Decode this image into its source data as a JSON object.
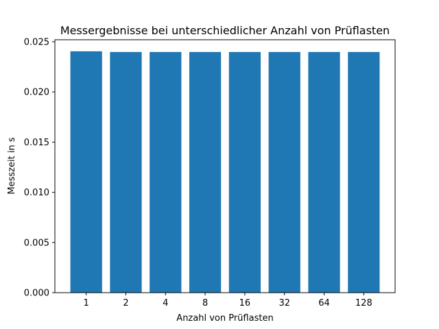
{
  "chart_data": {
    "type": "bar",
    "title": "Messergebnisse bei unterschiedlicher Anzahl von Prüflasten",
    "xlabel": "Anzahl von Prüflasten",
    "ylabel": "Messzeit in s",
    "categories": [
      "1",
      "2",
      "4",
      "8",
      "16",
      "32",
      "64",
      "128"
    ],
    "values": [
      0.02405,
      0.02398,
      0.02398,
      0.02398,
      0.02398,
      0.02398,
      0.02398,
      0.02398
    ],
    "ylim": [
      0,
      0.0252
    ],
    "yticks": [
      "0.000",
      "0.005",
      "0.010",
      "0.015",
      "0.020",
      "0.025"
    ],
    "ytick_values": [
      0,
      0.005,
      0.01,
      0.015,
      0.02,
      0.025
    ],
    "grid": false,
    "bar_color": "#1f77b4"
  }
}
